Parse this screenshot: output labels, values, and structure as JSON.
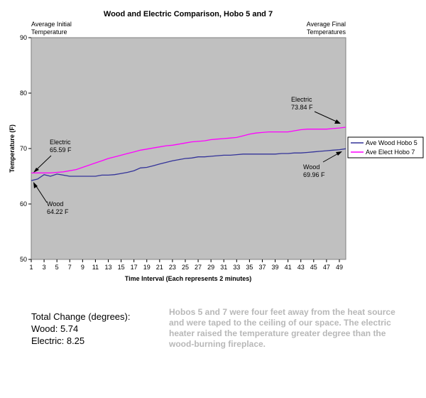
{
  "chart_data": {
    "type": "line",
    "title": "Wood and Electric Comparison, Hobo 5 and 7",
    "xlabel": "Time Interval (Each represents 2 minutes)",
    "ylabel": "Temperature (F)",
    "ylim": [
      50,
      90
    ],
    "yticks": [
      50,
      60,
      70,
      80,
      90
    ],
    "xlim": [
      1,
      50
    ],
    "xticks": [
      1,
      3,
      5,
      7,
      9,
      11,
      13,
      15,
      17,
      19,
      21,
      23,
      25,
      27,
      29,
      31,
      33,
      35,
      37,
      39,
      41,
      43,
      45,
      47,
      49
    ],
    "grid": false,
    "legend_position": "right",
    "background": "#c0c0c0",
    "series": [
      {
        "name": "Ave Wood Hobo 5",
        "color": "#333399",
        "values": [
          64.22,
          64.5,
          65.3,
          65.0,
          65.4,
          65.2,
          65.0,
          65.0,
          65.0,
          65.0,
          65.0,
          65.2,
          65.2,
          65.3,
          65.5,
          65.7,
          66.0,
          66.5,
          66.6,
          66.9,
          67.2,
          67.5,
          67.8,
          68.0,
          68.2,
          68.3,
          68.5,
          68.5,
          68.6,
          68.7,
          68.8,
          68.8,
          68.9,
          69.0,
          69.0,
          69.0,
          69.0,
          69.0,
          69.0,
          69.1,
          69.1,
          69.2,
          69.2,
          69.3,
          69.4,
          69.5,
          69.6,
          69.7,
          69.8,
          69.96
        ]
      },
      {
        "name": "Ave Elect Hobo 7",
        "color": "#ff00ff",
        "values": [
          65.59,
          65.6,
          65.6,
          65.6,
          65.7,
          65.8,
          66.0,
          66.2,
          66.6,
          67.0,
          67.4,
          67.8,
          68.2,
          68.5,
          68.8,
          69.1,
          69.4,
          69.7,
          69.9,
          70.1,
          70.3,
          70.5,
          70.6,
          70.8,
          71.0,
          71.2,
          71.3,
          71.4,
          71.6,
          71.7,
          71.8,
          71.9,
          72.0,
          72.3,
          72.6,
          72.8,
          72.9,
          73.0,
          73.0,
          73.0,
          73.0,
          73.2,
          73.4,
          73.5,
          73.5,
          73.5,
          73.5,
          73.6,
          73.7,
          73.84
        ]
      }
    ],
    "annotations": {
      "initial_heading": [
        "Average Initial",
        "Temperature"
      ],
      "final_heading": [
        "Average Final",
        "Temperatures"
      ],
      "elec_initial": [
        "Electric",
        "65.59 F"
      ],
      "wood_initial": [
        "Wood",
        "64.22 F"
      ],
      "elec_final": [
        "Electric",
        "73.84 F"
      ],
      "wood_final": [
        "Wood",
        "69.96 F"
      ]
    }
  },
  "summary": {
    "heading": "Total Change (degrees):",
    "wood": "Wood: 5.74",
    "electric": "Electric: 8.25"
  },
  "note": "Hobos 5 and 7 were four feet away from the heat source and were taped to the ceiling of our space. The electric heater raised the temperature greater degree than the wood-burning fireplace."
}
